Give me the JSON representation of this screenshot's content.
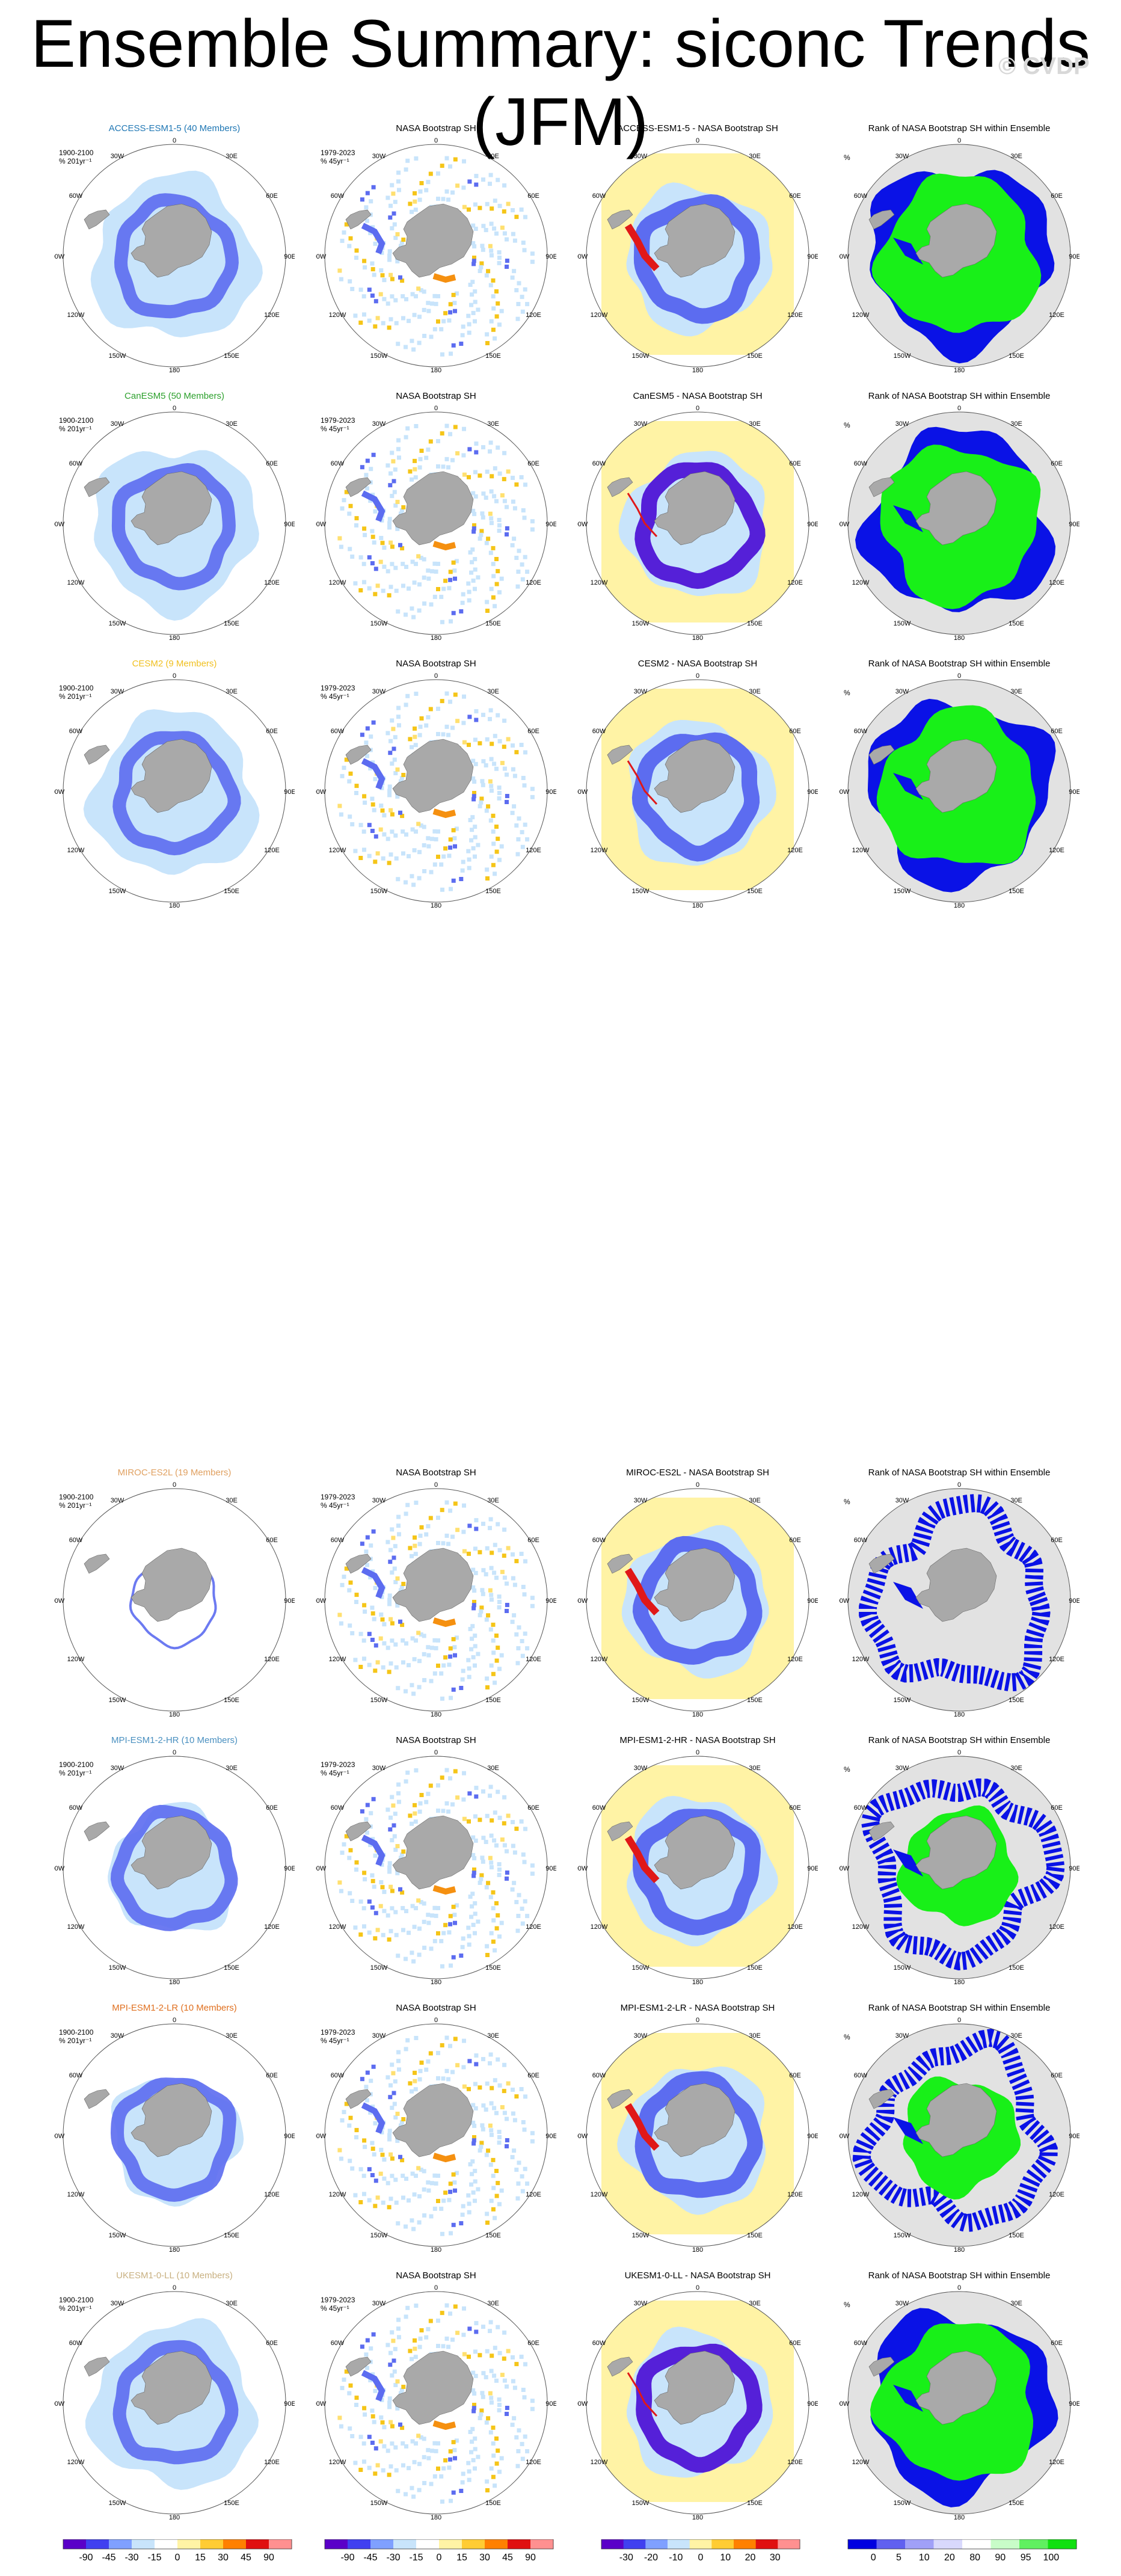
{
  "title": "Ensemble Summary: siconc Trends (JFM)",
  "watermark": "© CVDP",
  "obs_name": "NASA Bootstrap SH",
  "obs_period_label": "1979-2023\n% 45yr⁻¹",
  "model_period_label": "1900-2100\n% 201yr⁻¹",
  "rank_unit": "%",
  "rank_title": "Rank of NASA Bootstrap SH within Ensemble",
  "longitude_labels": {
    "n": "0",
    "ne": "30E",
    "e1": "60E",
    "e": "90E",
    "e2": "120E",
    "se": "150E",
    "s": "180",
    "sw": "150W",
    "w2": "120W",
    "w": "90W",
    "w1": "60W",
    "nw": "30W"
  },
  "colors": {
    "land": "#a9a9a9",
    "rank_low": "#0a12e6",
    "rank_high": "#18f018",
    "ocean_bg": "#e2e2e2",
    "bias_bg": "#fff3a5",
    "trend_light": "#c8e4fb",
    "trend_mid": "#5c6cf0",
    "trend_strong": "#5520d8",
    "trend_red": "#e01818"
  },
  "rows": [
    {
      "model": "ACCESS-ESM1-5 (40 Members)",
      "model_color": "#1f77b4",
      "diff_title": "ACCESS-ESM1-5 - NASA Bootstrap SH"
    },
    {
      "model": "CanESM5 (50 Members)",
      "model_color": "#2ca02c",
      "diff_title": "CanESM5 - NASA Bootstrap SH"
    },
    {
      "model": "CESM2 (9 Members)",
      "model_color": "#f0c020",
      "diff_title": "CESM2 - NASA Bootstrap SH"
    },
    {
      "model": "MIROC-ES2L (19 Members)",
      "model_color": "#e0a060",
      "diff_title": "MIROC-ES2L - NASA Bootstrap SH"
    },
    {
      "model": "MPI-ESM1-2-HR (10 Members)",
      "model_color": "#4a90c0",
      "diff_title": "MPI-ESM1-2-HR - NASA Bootstrap SH"
    },
    {
      "model": "MPI-ESM1-2-LR (10 Members)",
      "model_color": "#e07020",
      "diff_title": "MPI-ESM1-2-LR - NASA Bootstrap SH"
    },
    {
      "model": "UKESM1-0-LL (10 Members)",
      "model_color": "#c8b080",
      "diff_title": "UKESM1-0-LL - NASA Bootstrap SH"
    }
  ],
  "colorbars": [
    {
      "name": "model-trend",
      "ticks": [
        "-90",
        "-45",
        "-30",
        "-15",
        "0",
        "15",
        "30",
        "45",
        "90"
      ]
    },
    {
      "name": "obs-trend",
      "ticks": [
        "-90",
        "-45",
        "-30",
        "-15",
        "0",
        "15",
        "30",
        "45",
        "90"
      ]
    },
    {
      "name": "difference",
      "ticks": [
        "-30",
        "-20",
        "-10",
        "0",
        "10",
        "20",
        "30"
      ]
    },
    {
      "name": "rank",
      "ticks": [
        "0",
        "5",
        "10",
        "20",
        "80",
        "90",
        "95",
        "100"
      ]
    }
  ]
}
